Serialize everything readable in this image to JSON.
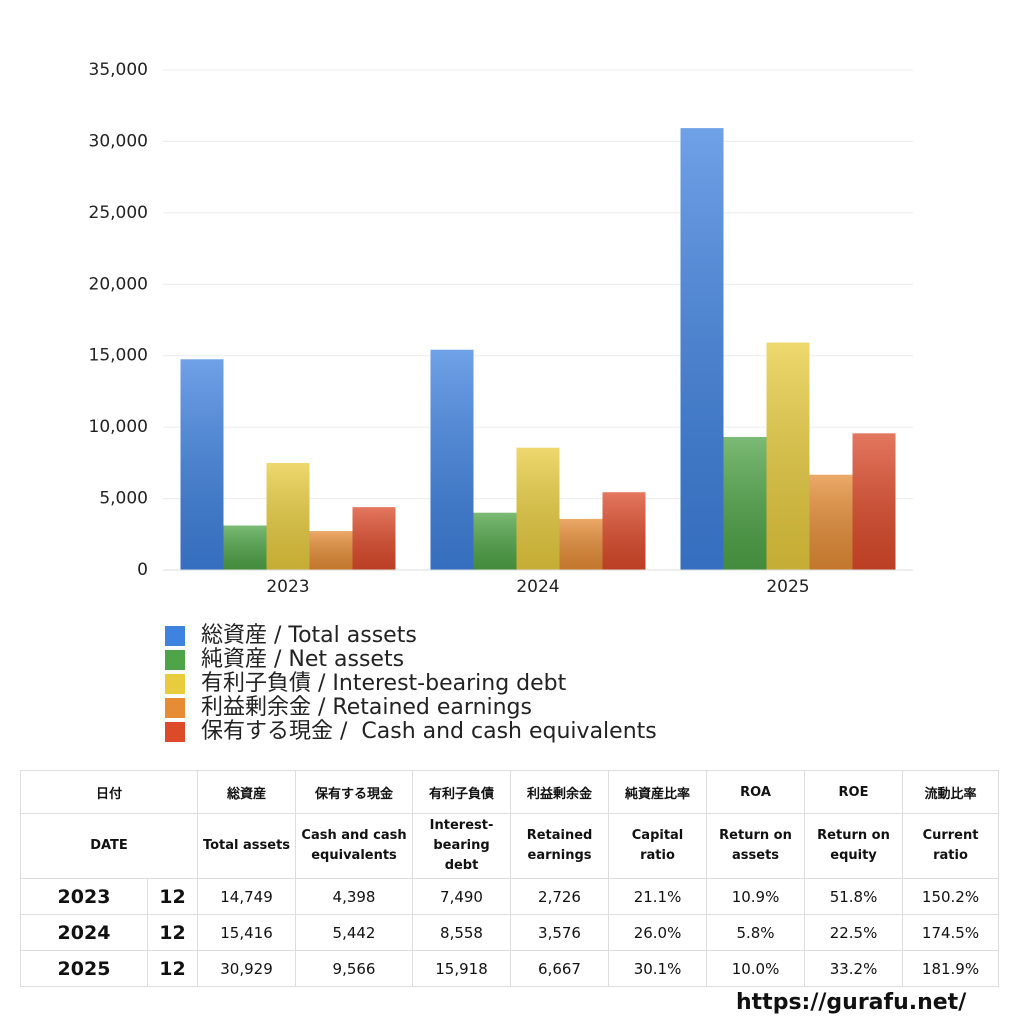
{
  "chart_data": {
    "type": "bar",
    "categories": [
      "2023",
      "2024",
      "2025"
    ],
    "series": [
      {
        "name": "総資産 / Total assets",
        "color": "#3f82e0",
        "values": [
          14749,
          15416,
          30929
        ]
      },
      {
        "name": "純資産 / Net assets",
        "color": "#4fa447",
        "values": [
          3112,
          4008,
          9310
        ]
      },
      {
        "name": "有利子負債 / Interest-bearing debt",
        "color": "#e8cc3e",
        "values": [
          7490,
          8558,
          15918
        ]
      },
      {
        "name": "利益剰余金 / Retained earnings",
        "color": "#e58c35",
        "values": [
          2726,
          3576,
          6667
        ]
      },
      {
        "name": "保有する現金 /  Cash and cash equivalents",
        "color": "#dc4a2a",
        "values": [
          4398,
          5442,
          9566
        ]
      }
    ],
    "ylim": [
      0,
      35000
    ],
    "yticks": [
      0,
      {
        "value": 5000,
        "label": "5,000"
      },
      {
        "value": 10000,
        "label": "10,000"
      },
      {
        "value": 15000,
        "label": "15,000"
      },
      {
        "value": 20000,
        "label": "20,000"
      },
      {
        "value": 25000,
        "label": "25,000"
      },
      {
        "value": 30000,
        "label": "30,000"
      },
      {
        "value": 35000,
        "label": "35,000"
      }
    ],
    "grid": true
  },
  "table": {
    "header": [
      [
        "日付",
        "総資産",
        "保有する現金",
        "有利子負債",
        "利益剰余金",
        "純資産比率",
        "ROA",
        "ROE",
        "流動比率"
      ],
      [
        "DATE",
        "Total assets",
        "Cash and cash equivalents",
        "Interest-bearing debt",
        "Retained earnings",
        "Capital ratio",
        "Return on assets",
        "Return on equity",
        "Current ratio"
      ]
    ],
    "rows": [
      [
        "2023",
        "12",
        "14,749",
        "4,398",
        "7,490",
        "2,726",
        "21.1%",
        "10.9%",
        "51.8%",
        "150.2%"
      ],
      [
        "2024",
        "12",
        "15,416",
        "5,442",
        "8,558",
        "3,576",
        "26.0%",
        "5.8%",
        "22.5%",
        "174.5%"
      ],
      [
        "2025",
        "12",
        "30,929",
        "9,566",
        "15,918",
        "6,667",
        "30.1%",
        "10.0%",
        "33.2%",
        "181.9%"
      ]
    ]
  },
  "footer": {
    "url": "https://gurafu.net/"
  }
}
